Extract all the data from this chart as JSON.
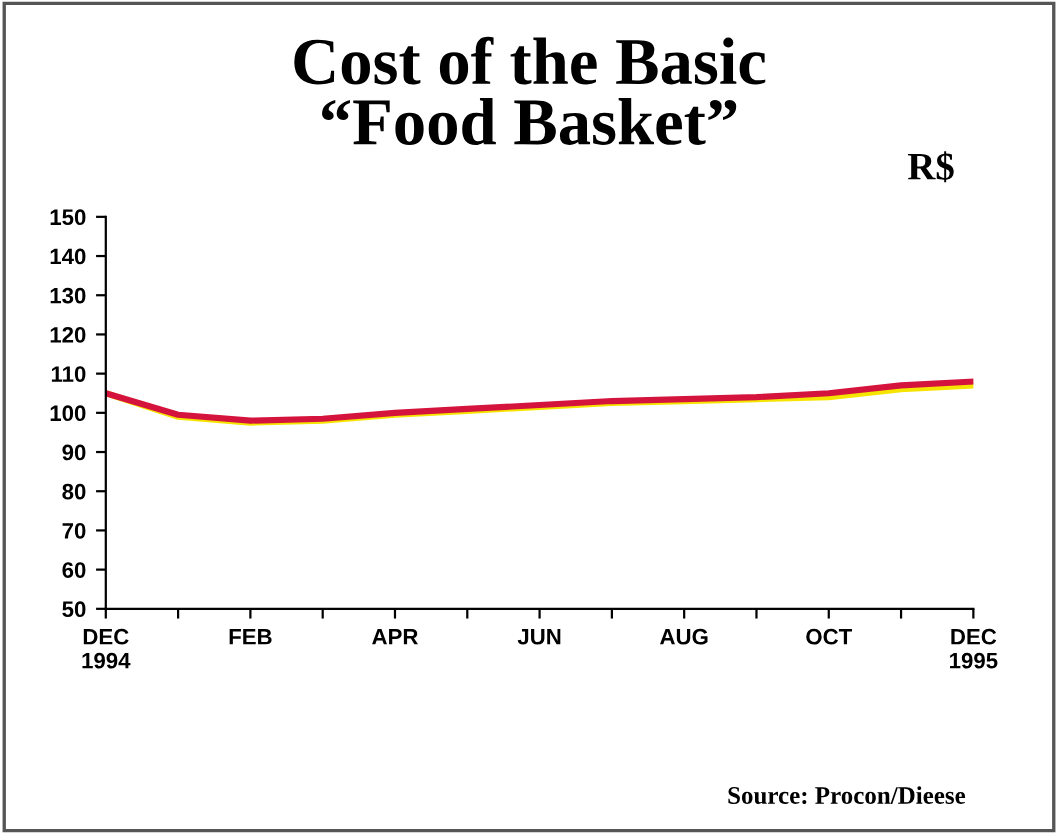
{
  "chart_data": {
    "type": "line",
    "title": "Cost of the Basic\n“Food Basket”",
    "ylabel": "R$",
    "categories": [
      "DEC\n1994",
      null,
      "FEB",
      null,
      "APR",
      null,
      "JUN",
      null,
      "AUG",
      null,
      "OCT",
      null,
      "DEC\n1995"
    ],
    "series": [
      {
        "color": "#f5e400",
        "values": [
          105,
          99,
          97.5,
          98,
          99.5,
          100.5,
          101.5,
          102.5,
          103,
          103.5,
          104,
          106,
          107
        ]
      },
      {
        "color": "#d4143c",
        "values": [
          105,
          99.5,
          98,
          98.5,
          100,
          101,
          102,
          103,
          103.5,
          104,
          105,
          107,
          108
        ]
      }
    ],
    "ylim": [
      50,
      150
    ],
    "yticks": [
      50,
      60,
      70,
      80,
      90,
      100,
      110,
      120,
      130,
      140,
      150
    ],
    "grid": false,
    "legend": false,
    "marker": "none",
    "line_style": "solid",
    "annotations": [
      "Source: Procon/Dieese"
    ]
  }
}
